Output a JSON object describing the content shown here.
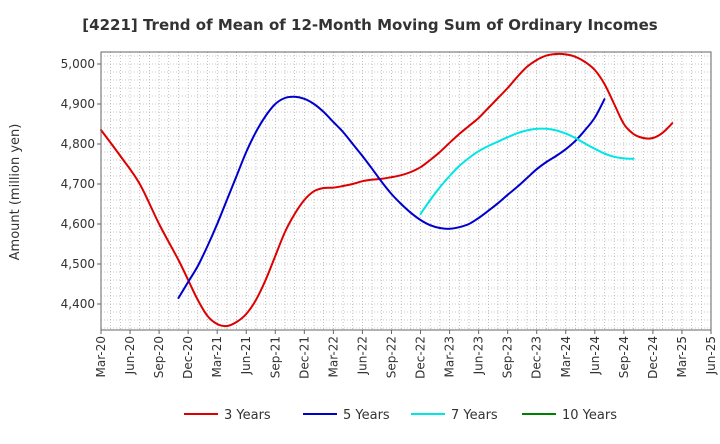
{
  "chart_data": {
    "type": "line",
    "title": "[4221]  Trend of Mean of 12-Month Moving Sum of Ordinary Incomes",
    "ylabel": "Amount (million yen)",
    "xlabel": "",
    "ylim": [
      4335,
      5030
    ],
    "yticks": [
      4400,
      4500,
      4600,
      4700,
      4800,
      4900,
      5000
    ],
    "ytick_labels": [
      "4,400",
      "4,500",
      "4,600",
      "4,700",
      "4,800",
      "4,900",
      "5,000"
    ],
    "xlim_months": [
      0,
      63
    ],
    "xticks": [
      {
        "label": "Mar-20",
        "m": 0
      },
      {
        "label": "Jun-20",
        "m": 3
      },
      {
        "label": "Sep-20",
        "m": 6
      },
      {
        "label": "Dec-20",
        "m": 9
      },
      {
        "label": "Mar-21",
        "m": 12
      },
      {
        "label": "Jun-21",
        "m": 15
      },
      {
        "label": "Sep-21",
        "m": 18
      },
      {
        "label": "Dec-21",
        "m": 21
      },
      {
        "label": "Mar-22",
        "m": 24
      },
      {
        "label": "Jun-22",
        "m": 27
      },
      {
        "label": "Sep-22",
        "m": 30
      },
      {
        "label": "Dec-22",
        "m": 33
      },
      {
        "label": "Mar-23",
        "m": 36
      },
      {
        "label": "Jun-23",
        "m": 39
      },
      {
        "label": "Sep-23",
        "m": 42
      },
      {
        "label": "Dec-23",
        "m": 45
      },
      {
        "label": "Mar-24",
        "m": 48
      },
      {
        "label": "Jun-24",
        "m": 51
      },
      {
        "label": "Sep-24",
        "m": 54
      },
      {
        "label": "Dec-24",
        "m": 57
      },
      {
        "label": "Mar-25",
        "m": 60
      },
      {
        "label": "Jun-25",
        "m": 63
      }
    ],
    "grid": true,
    "legend_position": "bottom",
    "series": [
      {
        "name": "3 Years",
        "color": "#dd0000",
        "points": [
          [
            0,
            4835
          ],
          [
            2,
            4770
          ],
          [
            4,
            4700
          ],
          [
            6,
            4600
          ],
          [
            8,
            4510
          ],
          [
            9,
            4460
          ],
          [
            10,
            4410
          ],
          [
            11,
            4370
          ],
          [
            12,
            4350
          ],
          [
            13,
            4345
          ],
          [
            14,
            4355
          ],
          [
            15,
            4375
          ],
          [
            16,
            4410
          ],
          [
            17,
            4460
          ],
          [
            18,
            4520
          ],
          [
            19,
            4580
          ],
          [
            20,
            4625
          ],
          [
            21,
            4660
          ],
          [
            22,
            4682
          ],
          [
            23,
            4690
          ],
          [
            24,
            4691
          ],
          [
            25,
            4695
          ],
          [
            26,
            4700
          ],
          [
            27,
            4707
          ],
          [
            28,
            4711
          ],
          [
            29,
            4713
          ],
          [
            30,
            4717
          ],
          [
            31,
            4722
          ],
          [
            32,
            4730
          ],
          [
            33,
            4742
          ],
          [
            34,
            4760
          ],
          [
            35,
            4780
          ],
          [
            36,
            4803
          ],
          [
            37,
            4825
          ],
          [
            38,
            4845
          ],
          [
            39,
            4865
          ],
          [
            40,
            4890
          ],
          [
            41,
            4915
          ],
          [
            42,
            4940
          ],
          [
            43,
            4968
          ],
          [
            44,
            4993
          ],
          [
            45,
            5010
          ],
          [
            46,
            5021
          ],
          [
            47,
            5025
          ],
          [
            48,
            5024
          ],
          [
            49,
            5018
          ],
          [
            50,
            5005
          ],
          [
            51,
            4985
          ],
          [
            52,
            4950
          ],
          [
            53,
            4900
          ],
          [
            54,
            4850
          ],
          [
            55,
            4825
          ],
          [
            56,
            4815
          ],
          [
            57,
            4815
          ],
          [
            58,
            4828
          ],
          [
            59,
            4852
          ]
        ]
      },
      {
        "name": "5 Years",
        "color": "#0000cc",
        "points": [
          [
            8,
            4415
          ],
          [
            9,
            4455
          ],
          [
            10,
            4495
          ],
          [
            11,
            4545
          ],
          [
            12,
            4600
          ],
          [
            13,
            4660
          ],
          [
            14,
            4720
          ],
          [
            15,
            4780
          ],
          [
            16,
            4830
          ],
          [
            17,
            4870
          ],
          [
            18,
            4900
          ],
          [
            19,
            4915
          ],
          [
            20,
            4918
          ],
          [
            21,
            4913
          ],
          [
            22,
            4900
          ],
          [
            23,
            4880
          ],
          [
            24,
            4855
          ],
          [
            25,
            4830
          ],
          [
            26,
            4800
          ],
          [
            27,
            4770
          ],
          [
            28,
            4738
          ],
          [
            29,
            4705
          ],
          [
            30,
            4675
          ],
          [
            31,
            4650
          ],
          [
            32,
            4628
          ],
          [
            33,
            4610
          ],
          [
            34,
            4597
          ],
          [
            35,
            4590
          ],
          [
            36,
            4588
          ],
          [
            37,
            4592
          ],
          [
            38,
            4600
          ],
          [
            39,
            4615
          ],
          [
            40,
            4633
          ],
          [
            41,
            4652
          ],
          [
            42,
            4673
          ],
          [
            43,
            4693
          ],
          [
            44,
            4715
          ],
          [
            45,
            4737
          ],
          [
            46,
            4755
          ],
          [
            47,
            4770
          ],
          [
            48,
            4787
          ],
          [
            49,
            4808
          ],
          [
            50,
            4835
          ],
          [
            51,
            4866
          ],
          [
            52,
            4912
          ]
        ]
      },
      {
        "name": "7 Years",
        "color": "#00e5e5",
        "points": [
          [
            33,
            4625
          ],
          [
            34,
            4660
          ],
          [
            35,
            4692
          ],
          [
            36,
            4720
          ],
          [
            37,
            4745
          ],
          [
            38,
            4765
          ],
          [
            39,
            4782
          ],
          [
            40,
            4795
          ],
          [
            41,
            4806
          ],
          [
            42,
            4817
          ],
          [
            43,
            4827
          ],
          [
            44,
            4834
          ],
          [
            45,
            4838
          ],
          [
            46,
            4838
          ],
          [
            47,
            4834
          ],
          [
            48,
            4826
          ],
          [
            49,
            4815
          ],
          [
            50,
            4801
          ],
          [
            51,
            4788
          ],
          [
            52,
            4776
          ],
          [
            53,
            4768
          ],
          [
            54,
            4764
          ],
          [
            55,
            4763
          ]
        ]
      },
      {
        "name": "10 Years",
        "color": "#008000",
        "points": []
      }
    ]
  }
}
